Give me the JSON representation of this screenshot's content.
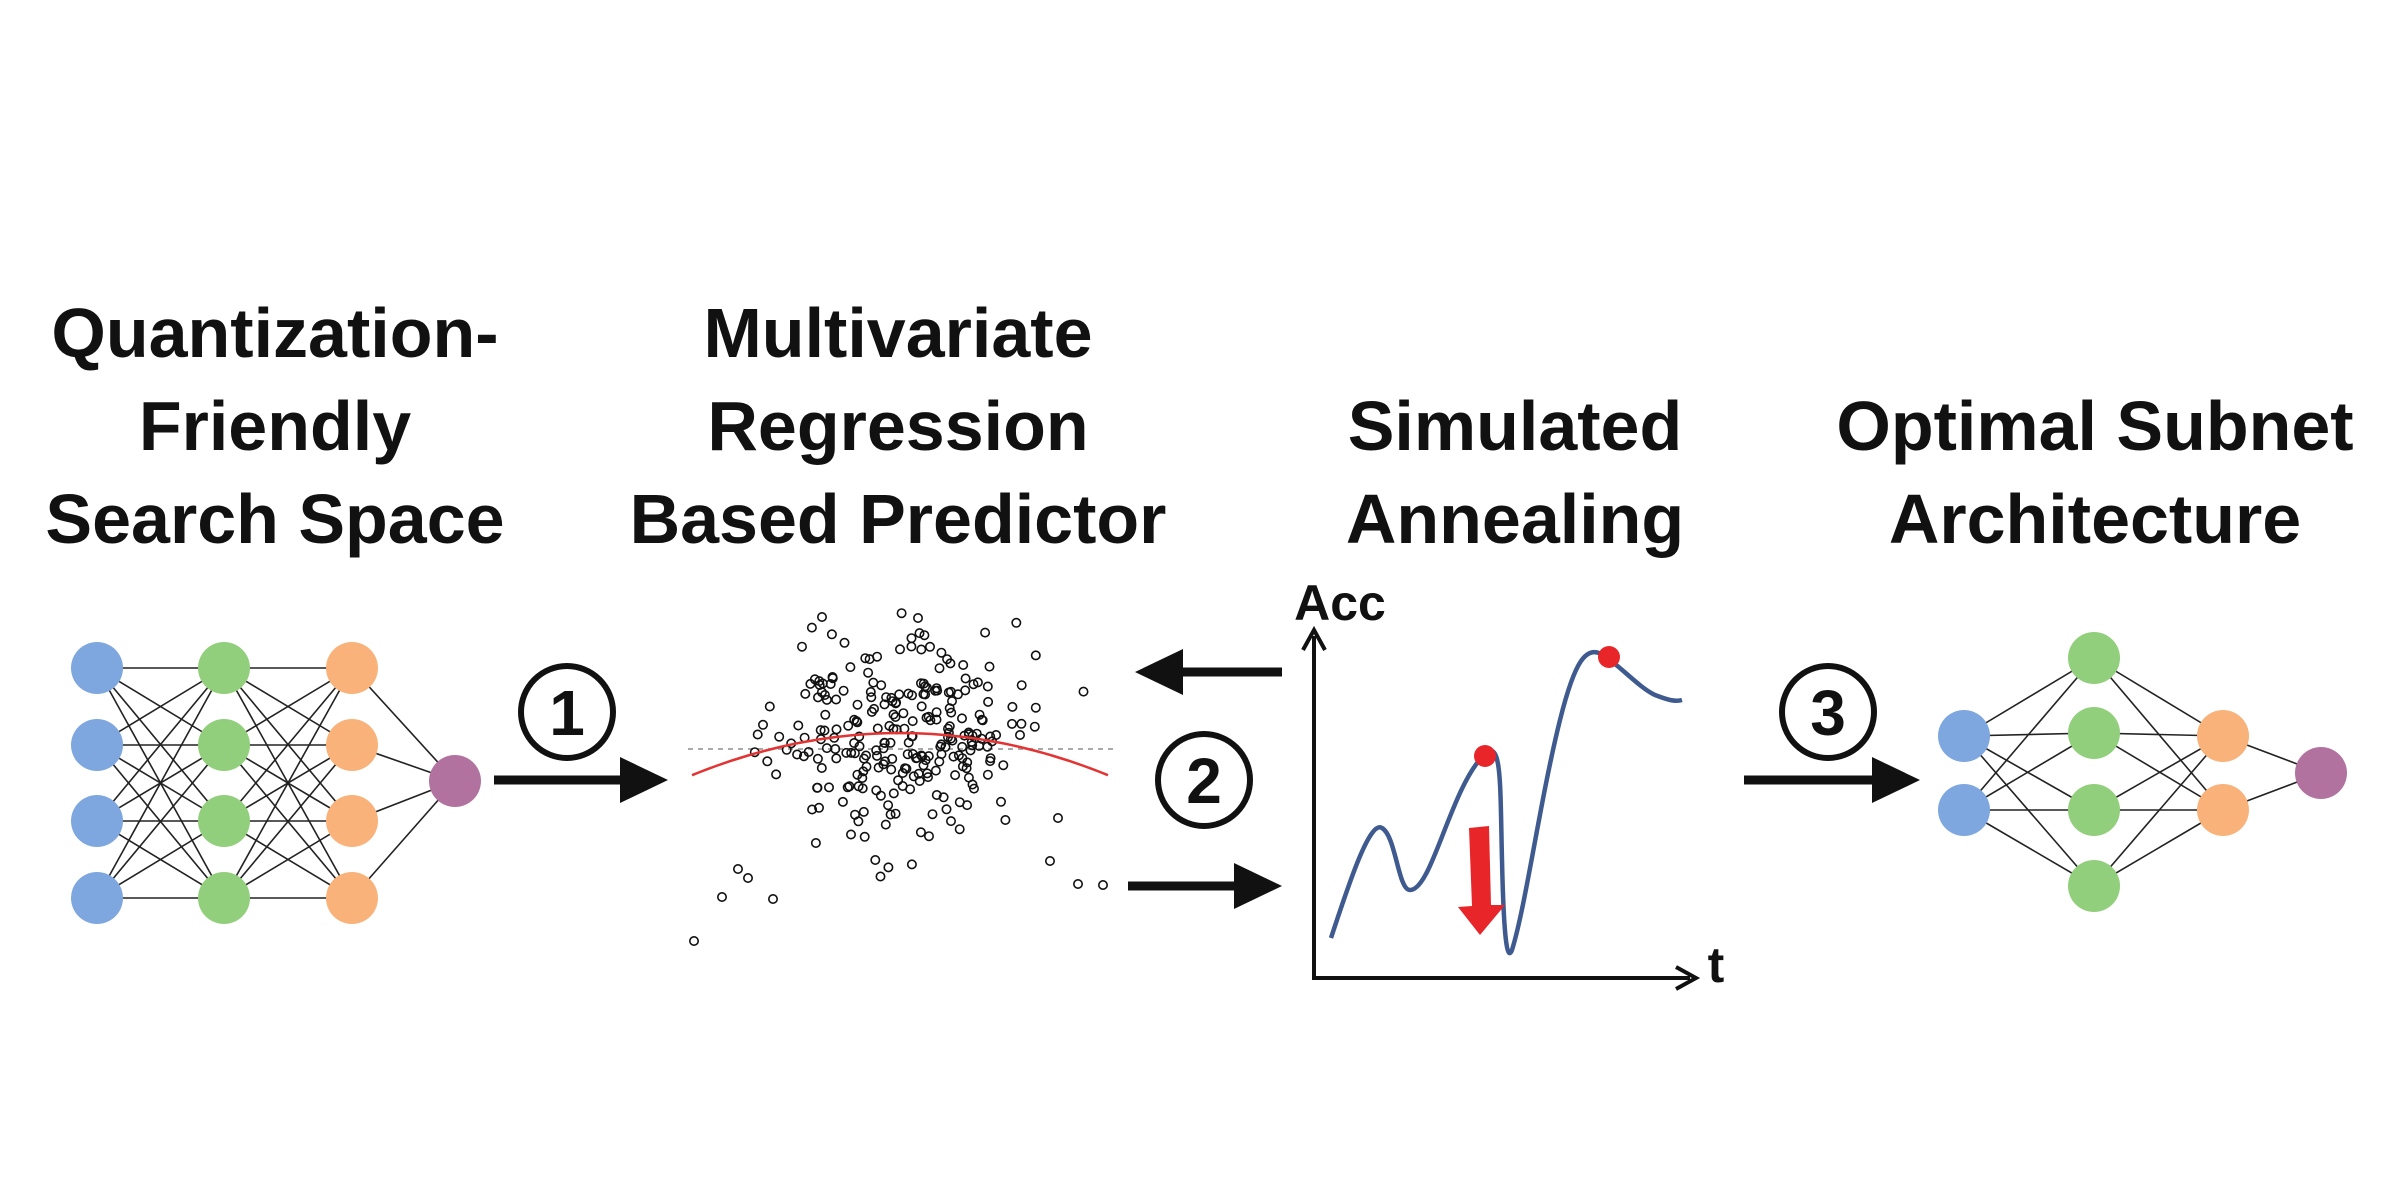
{
  "sections": [
    {
      "key": "search_space",
      "title_lines": [
        "Quantization-",
        "Friendly",
        "Search Space"
      ]
    },
    {
      "key": "predictor",
      "title_lines": [
        "Multivariate",
        "Regression",
        "Based Predictor"
      ]
    },
    {
      "key": "annealing",
      "title_lines": [
        "Simulated",
        "Annealing"
      ]
    },
    {
      "key": "optimal",
      "title_lines": [
        "Optimal Subnet",
        "Architecture"
      ]
    }
  ],
  "steps": [
    "1",
    "2",
    "3"
  ],
  "annealing_axes": {
    "y_label": "Acc",
    "x_label": "t"
  },
  "colors": {
    "blue": "#7ea6df",
    "green": "#92cf7c",
    "orange": "#f8b27a",
    "purple": "#b2729f",
    "curve": "#3e5a8f",
    "red": "#e8262a",
    "fit": "#e33333",
    "ink": "#111111"
  },
  "networks": {
    "search_space": {
      "layers": [
        4,
        4,
        4,
        1
      ],
      "colors": [
        "blue",
        "green",
        "orange",
        "purple"
      ]
    },
    "optimal": {
      "layers": [
        2,
        4,
        2,
        1
      ],
      "colors": [
        "blue",
        "green",
        "orange",
        "purple"
      ]
    }
  }
}
